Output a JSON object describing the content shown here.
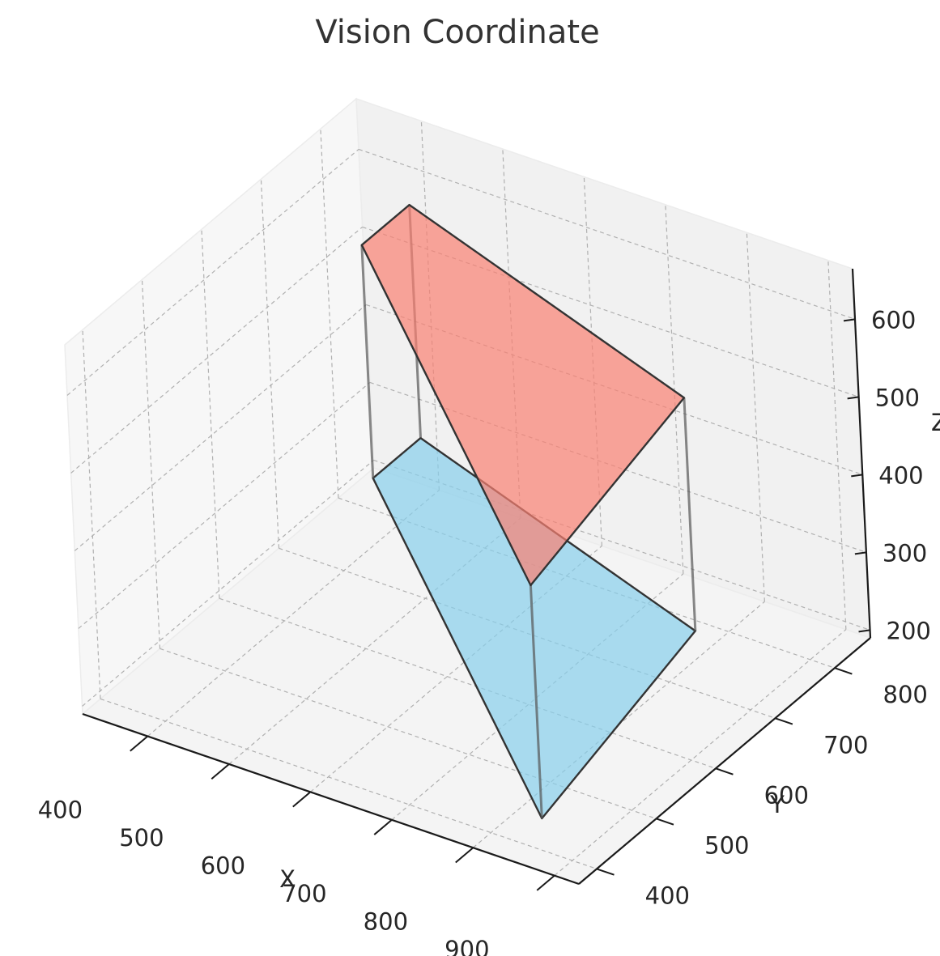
{
  "chart_data": {
    "type": "3d-polygon",
    "title": "Vision Coordinate",
    "xlabel": "X",
    "ylabel": "Y",
    "zlabel": "Z",
    "xlim": [
      320,
      930
    ],
    "ylim": [
      370,
      860
    ],
    "zlim": [
      190,
      665
    ],
    "x_ticks": [
      400,
      500,
      600,
      700,
      800,
      900
    ],
    "y_ticks": [
      400,
      500,
      600,
      700,
      800
    ],
    "z_ticks": [
      200,
      300,
      400,
      500,
      600
    ],
    "grid": true,
    "series": [
      {
        "surface": "bottom",
        "color": "#87ceeb",
        "points": [
          [
            380,
            780,
            250
          ],
          [
            880,
            380,
            250
          ],
          [
            820,
            720,
            250
          ],
          [
            380,
            860,
            250
          ]
        ]
      },
      {
        "surface": "top",
        "color": "#fa8072",
        "points": [
          [
            380,
            780,
            550
          ],
          [
            880,
            380,
            550
          ],
          [
            820,
            720,
            550
          ],
          [
            380,
            860,
            550
          ]
        ]
      }
    ]
  }
}
